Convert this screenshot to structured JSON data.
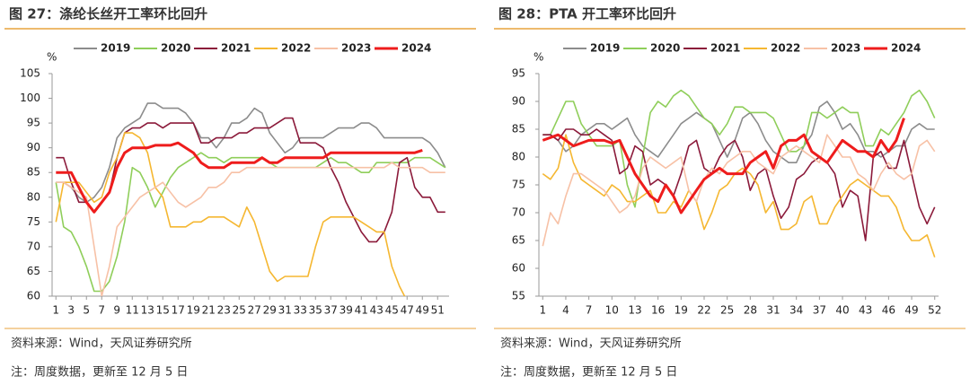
{
  "chart_data": [
    {
      "type": "line",
      "title": "图 27：涤纶长丝开工率环比回升",
      "ylabel": "%",
      "x": [
        1,
        2,
        3,
        4,
        5,
        6,
        7,
        8,
        9,
        10,
        11,
        12,
        13,
        14,
        15,
        16,
        17,
        18,
        19,
        20,
        21,
        22,
        23,
        24,
        25,
        26,
        27,
        28,
        29,
        30,
        31,
        32,
        33,
        34,
        35,
        36,
        37,
        38,
        39,
        40,
        41,
        42,
        43,
        44,
        45,
        46,
        47,
        48,
        49,
        50,
        51,
        52
      ],
      "xlim": [
        0.5,
        52.5
      ],
      "xticks": [
        1,
        3,
        5,
        7,
        9,
        11,
        13,
        15,
        17,
        19,
        21,
        23,
        25,
        27,
        29,
        31,
        33,
        35,
        37,
        39,
        41,
        43,
        45,
        47,
        49,
        51
      ],
      "ylim": [
        60,
        105
      ],
      "yticks": [
        60,
        65,
        70,
        75,
        80,
        85,
        90,
        95,
        100,
        105
      ],
      "series": [
        {
          "name": "2019",
          "color": "#8c8c8c",
          "values": [
            83,
            83,
            82,
            80,
            79,
            80,
            82,
            86,
            92,
            94,
            95,
            96,
            99,
            99,
            98,
            98,
            98,
            97,
            95,
            92,
            92,
            90,
            92,
            95,
            95,
            96,
            98,
            97,
            93,
            91,
            89,
            90,
            92,
            92,
            92,
            92,
            93,
            94,
            94,
            94,
            95,
            95,
            94,
            92,
            92,
            92,
            92,
            92,
            92,
            91,
            89,
            86
          ]
        },
        {
          "name": "2020",
          "color": "#8fce5a",
          "values": [
            83,
            74,
            73,
            70,
            66,
            61,
            61,
            63,
            68,
            75,
            86,
            85,
            82,
            78,
            81,
            84,
            86,
            87,
            88,
            89,
            88,
            88,
            87,
            88,
            88,
            88,
            88,
            88,
            87,
            86,
            86,
            86,
            86,
            86,
            86,
            87,
            88,
            87,
            87,
            86,
            85,
            85,
            87,
            87,
            87,
            87,
            87,
            88,
            88,
            88,
            87,
            86
          ]
        },
        {
          "name": "2021",
          "color": "#8b1a3a",
          "values": [
            88,
            88,
            83,
            79,
            79,
            77,
            79,
            81,
            88,
            93,
            94,
            94,
            95,
            95,
            94,
            95,
            95,
            95,
            95,
            91,
            91,
            92,
            92,
            92,
            93,
            93,
            94,
            94,
            94,
            95,
            96,
            96,
            91,
            91,
            91,
            90,
            86,
            83,
            79,
            76,
            73,
            71,
            71,
            73,
            77,
            87,
            88,
            82,
            80,
            80,
            77,
            77
          ]
        },
        {
          "name": "2022",
          "color": "#f5b731",
          "values": [
            75,
            83,
            83,
            83,
            81,
            79,
            80,
            85,
            88,
            93,
            93,
            92,
            89,
            82,
            80,
            74,
            74,
            74,
            75,
            75,
            76,
            76,
            76,
            75,
            74,
            78,
            75,
            70,
            65,
            63,
            64,
            64,
            64,
            64,
            70,
            75,
            76,
            76,
            76,
            76,
            75,
            74,
            73,
            73,
            66,
            62,
            59,
            null,
            null,
            null,
            null,
            null
          ]
        },
        {
          "name": "2023",
          "color": "#f7c1a6",
          "values": [
            83,
            83,
            82,
            81,
            80,
            70,
            60,
            66,
            74,
            76,
            78,
            80,
            81,
            82,
            83,
            81,
            79,
            78,
            79,
            80,
            82,
            82,
            83,
            85,
            85,
            86,
            86,
            86,
            86,
            86,
            86,
            86,
            86,
            86,
            86,
            86,
            86,
            86,
            86,
            86,
            86,
            86,
            86,
            86,
            87,
            86,
            86,
            86,
            86,
            85,
            85,
            85
          ]
        },
        {
          "name": "2024",
          "color": "#ee1c1c",
          "width": 3,
          "values": [
            85,
            85,
            85,
            82,
            79,
            77,
            79,
            81,
            86,
            89,
            90,
            90,
            90,
            90.5,
            90.5,
            90.5,
            91,
            90,
            89,
            87,
            86,
            86,
            86,
            87,
            87,
            87,
            87,
            88,
            87,
            87,
            88,
            88,
            88,
            88,
            88,
            88,
            89,
            89,
            89,
            89,
            89,
            89,
            89,
            89,
            89,
            89,
            89,
            89,
            89.5,
            null,
            null,
            null
          ]
        }
      ],
      "source": "资料来源：Wind，天风证券研究所",
      "note": "注：周度数据，更新至 12 月 5 日"
    },
    {
      "type": "line",
      "title": "图 28：PTA 开工率环比回升",
      "ylabel": "%",
      "x": [
        1,
        2,
        3,
        4,
        5,
        6,
        7,
        8,
        9,
        10,
        11,
        12,
        13,
        14,
        15,
        16,
        17,
        18,
        19,
        20,
        21,
        22,
        23,
        24,
        25,
        26,
        27,
        28,
        29,
        30,
        31,
        32,
        33,
        34,
        35,
        36,
        37,
        38,
        39,
        40,
        41,
        42,
        43,
        44,
        45,
        46,
        47,
        48,
        49,
        50,
        51,
        52
      ],
      "xlim": [
        0.5,
        52.5
      ],
      "xticks": [
        1,
        4,
        7,
        10,
        13,
        16,
        19,
        22,
        25,
        28,
        31,
        34,
        37,
        40,
        43,
        46,
        49,
        52
      ],
      "ylim": [
        55,
        95
      ],
      "yticks": [
        55,
        60,
        65,
        70,
        75,
        80,
        85,
        90,
        95
      ],
      "series": [
        {
          "name": "2019",
          "color": "#8c8c8c",
          "values": [
            84,
            84,
            83,
            81,
            82,
            84,
            85,
            86,
            86,
            85,
            86,
            87,
            84,
            82,
            81,
            80,
            82,
            84,
            86,
            87,
            88,
            87,
            86,
            83,
            80,
            83,
            87,
            88,
            86,
            83,
            81,
            80,
            79,
            79,
            82,
            84,
            89,
            90,
            88,
            85,
            86,
            84,
            81,
            81,
            80,
            81,
            82,
            82,
            85,
            86,
            85,
            85
          ]
        },
        {
          "name": "2020",
          "color": "#8fce5a",
          "values": [
            84,
            84,
            87,
            90,
            90,
            86,
            84,
            82,
            82,
            82,
            83,
            75,
            71,
            80,
            88,
            90,
            89,
            91,
            92,
            91,
            89,
            87,
            86,
            84,
            86,
            89,
            89,
            88,
            88,
            88,
            87,
            84,
            81,
            81,
            82,
            88,
            88,
            87,
            88,
            89,
            88,
            88,
            82,
            82,
            85,
            84,
            86,
            88,
            91,
            92,
            90,
            87
          ]
        },
        {
          "name": "2021",
          "color": "#8b1a3a",
          "values": [
            84,
            84,
            83,
            85,
            85,
            84,
            84,
            85,
            84,
            83,
            77,
            78,
            82,
            81,
            75,
            76,
            75,
            73,
            77,
            82,
            83,
            78,
            77,
            80,
            82,
            83,
            80,
            74,
            77,
            78,
            73,
            69,
            71,
            76,
            77,
            79,
            80,
            79,
            77,
            71,
            74,
            73,
            65,
            80,
            81,
            78,
            78,
            83,
            77,
            71,
            68,
            71
          ]
        },
        {
          "name": "2022",
          "color": "#f5b731",
          "values": [
            77,
            76,
            78,
            84,
            79,
            76,
            75,
            74,
            73,
            75,
            74,
            72,
            72,
            73,
            74,
            70,
            70,
            72,
            71,
            74,
            72,
            67,
            70,
            74,
            75,
            77,
            78,
            77,
            75,
            70,
            72,
            67,
            67,
            68,
            72,
            73,
            68,
            68,
            71,
            73,
            75,
            76,
            75,
            74,
            73,
            73,
            71,
            67,
            65,
            65,
            66,
            62
          ]
        },
        {
          "name": "2023",
          "color": "#f7c1a6",
          "values": [
            64,
            70,
            68,
            73,
            77,
            77,
            76,
            75,
            74,
            72,
            70,
            71,
            73,
            78,
            80,
            79,
            78,
            79,
            80,
            74,
            72,
            76,
            78,
            77,
            79,
            80,
            81,
            81,
            79,
            78,
            77,
            80,
            81,
            82,
            81,
            80,
            79,
            84,
            82,
            80,
            80,
            77,
            76,
            74,
            77,
            79,
            77,
            76,
            77,
            82,
            83,
            81
          ]
        },
        {
          "name": "2024",
          "color": "#ee1c1c",
          "width": 3,
          "values": [
            83,
            83.5,
            84,
            83,
            82,
            82.5,
            83,
            83,
            83,
            82.5,
            83,
            80,
            77,
            75,
            73,
            72,
            75,
            73,
            70,
            72,
            74,
            76,
            77,
            78,
            77,
            77,
            77,
            79,
            80,
            81,
            78,
            82,
            83,
            83,
            84,
            81,
            80,
            79,
            81,
            83,
            82,
            81,
            81,
            80,
            83,
            81,
            83,
            87,
            null,
            null,
            null,
            null
          ]
        }
      ],
      "source": "资料来源：Wind，天风证券研究所",
      "note": "注：周度数据，更新至 12 月 5 日"
    }
  ]
}
